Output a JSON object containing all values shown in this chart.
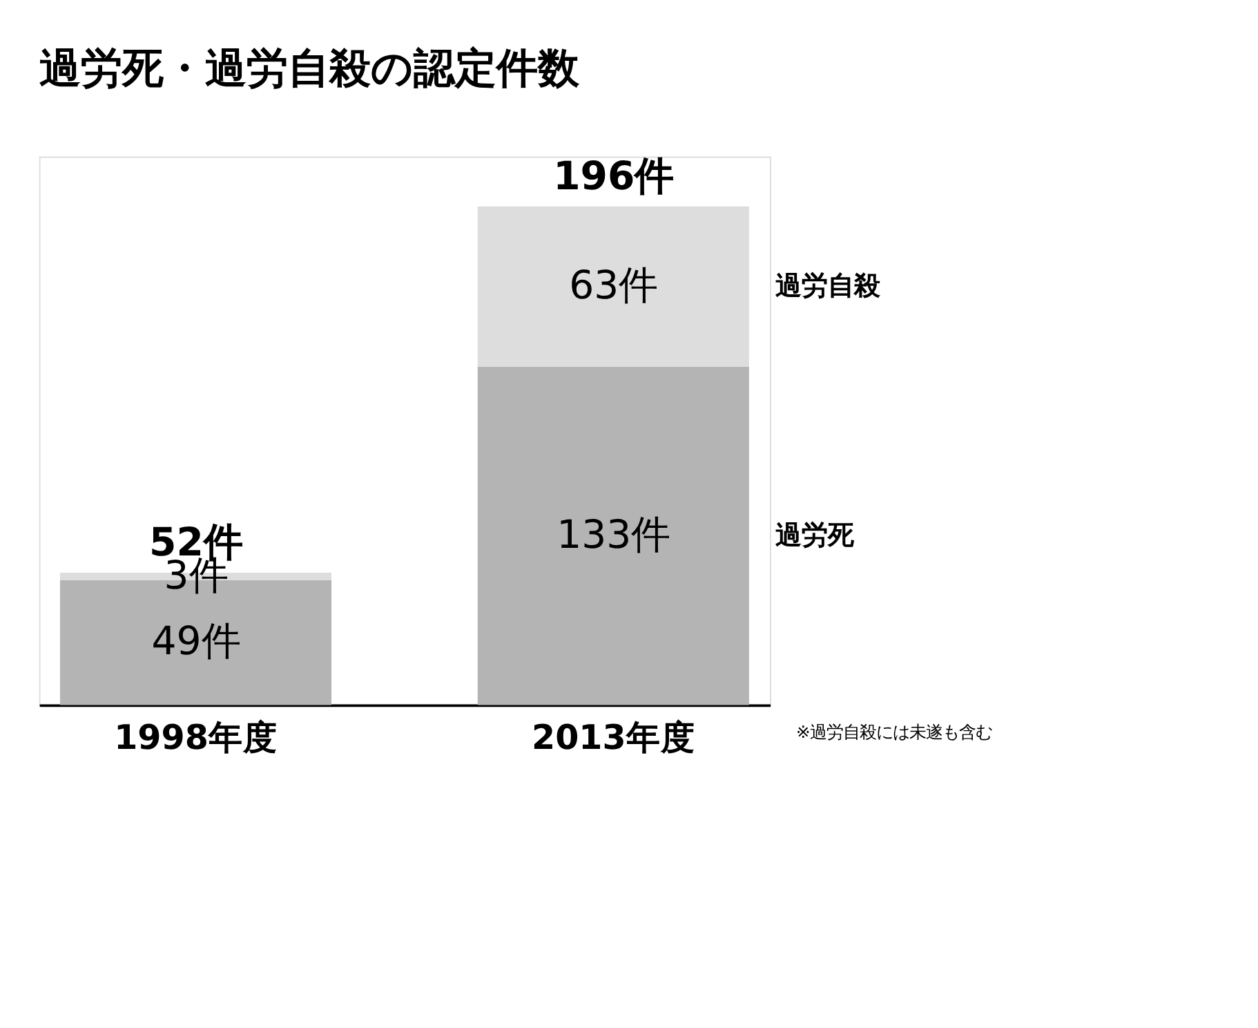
{
  "chart_data": {
    "type": "bar",
    "title": "過労死・過労自殺の認定件数",
    "categories": [
      "1998年度",
      "2013年度"
    ],
    "stacked": true,
    "tick_labels": "x",
    "series": [
      {
        "name": "過労死",
        "color": "#b4b4b4",
        "values": [
          49,
          133
        ],
        "value_labels": [
          "49件",
          "133件"
        ]
      },
      {
        "name": "過労自殺",
        "color": "#dddddd",
        "values": [
          3,
          63
        ],
        "value_labels": [
          "3件",
          "63件"
        ]
      }
    ],
    "totals": [
      "52件",
      "196件"
    ],
    "annotations": [
      "※過労自殺には未遂も含む"
    ]
  }
}
